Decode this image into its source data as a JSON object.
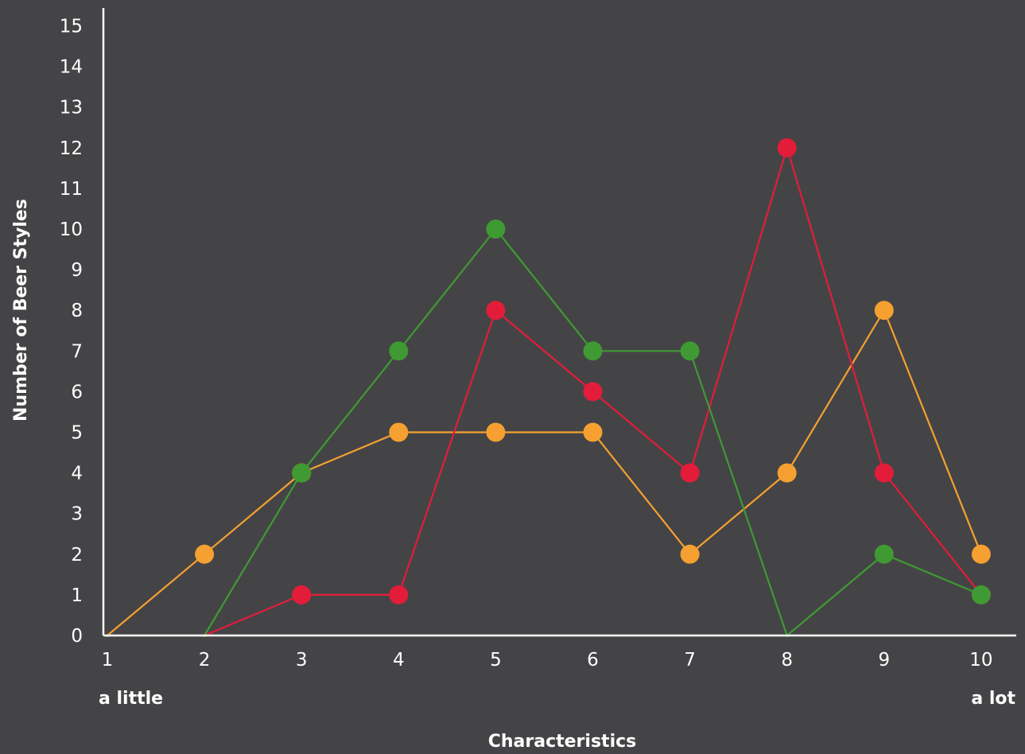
{
  "chart_data": {
    "type": "line",
    "x": [
      1,
      2,
      3,
      4,
      5,
      6,
      7,
      8,
      9,
      10
    ],
    "xlim": [
      1,
      10
    ],
    "ylim": [
      0,
      15
    ],
    "y_ticks": [
      0,
      1,
      2,
      3,
      4,
      5,
      6,
      7,
      8,
      9,
      10,
      11,
      12,
      13,
      14,
      15
    ],
    "xlabel": "Characteristics",
    "ylabel": "Number of Beer Styles",
    "x_low_label": "a little",
    "x_high_label": "a lot",
    "grid": false,
    "legend": "none",
    "series": [
      {
        "color": "#f5a030",
        "values": [
          0,
          2,
          4,
          5,
          5,
          5,
          2,
          4,
          8,
          2
        ]
      },
      {
        "color": "#e31c3a",
        "values": [
          0,
          0,
          1,
          1,
          8,
          6,
          4,
          12,
          4,
          1
        ]
      },
      {
        "color": "#3f9a33",
        "values": [
          0,
          0,
          4,
          7,
          10,
          7,
          7,
          0,
          2,
          1
        ]
      }
    ]
  }
}
